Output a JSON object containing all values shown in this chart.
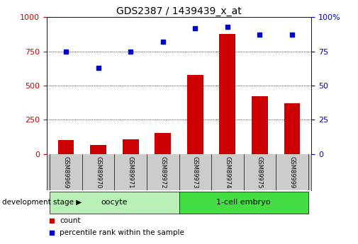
{
  "title": "GDS2387 / 1439439_x_at",
  "samples": [
    "GSM89969",
    "GSM89970",
    "GSM89971",
    "GSM89972",
    "GSM89973",
    "GSM89974",
    "GSM89975",
    "GSM89999"
  ],
  "count_values": [
    100,
    65,
    105,
    155,
    575,
    875,
    420,
    370
  ],
  "percentile_values": [
    75,
    63,
    75,
    82,
    92,
    93,
    87,
    87
  ],
  "groups": [
    {
      "label": "oocyte",
      "start": 0,
      "end": 4,
      "color": "#b8f0b8"
    },
    {
      "label": "1-cell embryo",
      "start": 4,
      "end": 8,
      "color": "#44dd44"
    }
  ],
  "bar_color": "#cc0000",
  "dot_color": "#0000cc",
  "left_axis_color": "#cc0000",
  "right_axis_color": "#0000cc",
  "ylim_left": [
    0,
    1000
  ],
  "ylim_right": [
    0,
    100
  ],
  "yticks_left": [
    0,
    250,
    500,
    750,
    1000
  ],
  "yticks_right": [
    0,
    25,
    50,
    75,
    100
  ],
  "xlabel_area": "development stage",
  "legend_count_label": "count",
  "legend_percentile_label": "percentile rank within the sample",
  "grid_color": "black",
  "background_color": "white",
  "plot_bg_color": "white",
  "tick_label_area_color": "#cccccc",
  "bar_width": 0.5
}
